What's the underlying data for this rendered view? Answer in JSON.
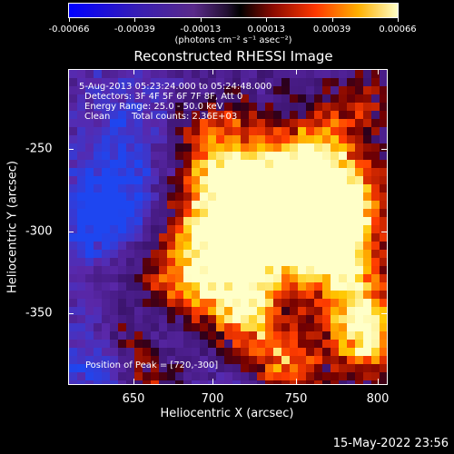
{
  "colorbar": {
    "tick_labels": [
      "-0.00066",
      "-0.00039",
      "-0.00013",
      "0.00013",
      "0.00039",
      "0.00066"
    ],
    "units": "(photons cm⁻² s⁻¹ asec⁻²)"
  },
  "title": "Reconstructed RHESSI Image",
  "annotations": {
    "time_range": "5-Aug-2013 05:23:24.000 to 05:24:48.000",
    "detectors": "Detectors: 3F 4F 5F 6F 7F 8F, Att 0",
    "energy": "Energy Range: 25.0 - 50.0 keV",
    "method": "Clean",
    "counts": "Total counts: 2.36E+03",
    "peak": "Position of Peak = [720,-300]"
  },
  "axes": {
    "xlabel": "Heliocentric X (arcsec)",
    "ylabel": "Heliocentric Y (arcsec)",
    "xticks": [
      "650",
      "700",
      "750",
      "800"
    ],
    "yticks": [
      "-250",
      "-300",
      "-350"
    ],
    "x_range": [
      612,
      802
    ],
    "y_range": [
      -394,
      -206
    ]
  },
  "datestamp": "15-May-2022 23:56",
  "colors": {
    "background": "#000000",
    "text": "#ffffff"
  }
}
